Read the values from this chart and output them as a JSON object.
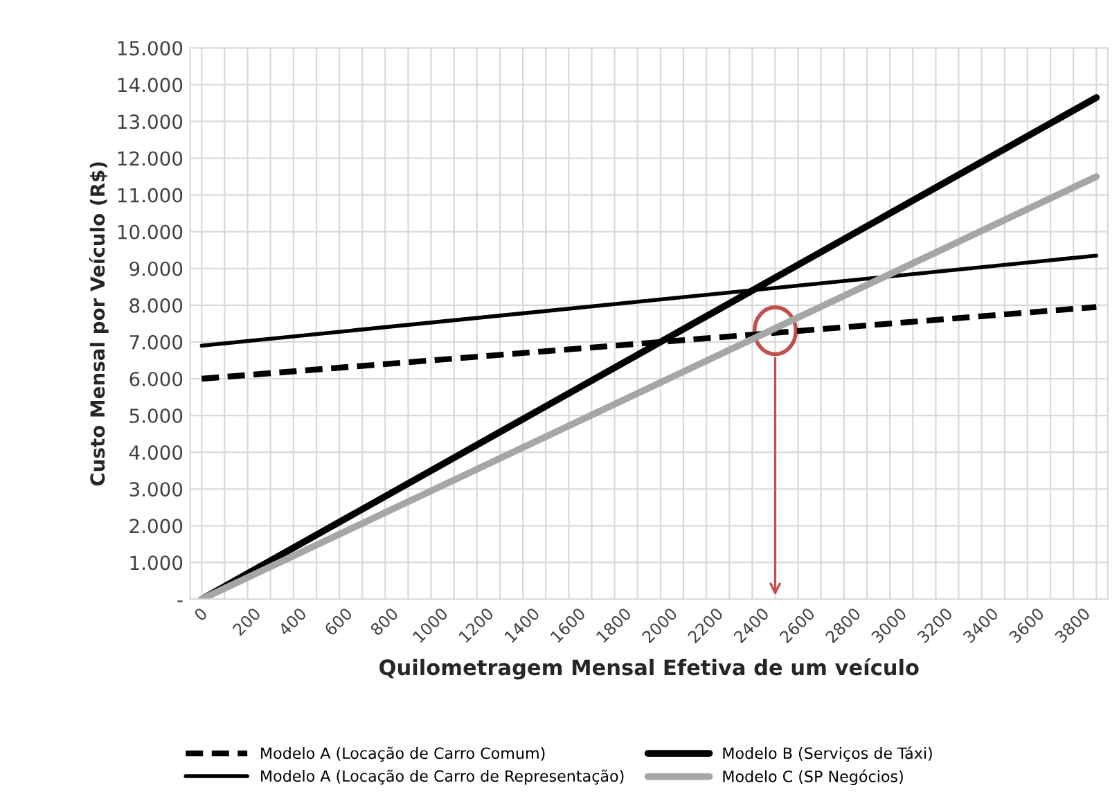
{
  "chart_data": {
    "type": "line",
    "xlabel": "Quilometragem Mensal Efetiva de um veículo",
    "ylabel": "Custo Mensal por Veículo (R$)",
    "x": [
      0,
      3900
    ],
    "series": [
      {
        "name": "Modelo A (Locação de Carro Comum)",
        "color": "#000000",
        "values": [
          6000,
          7950
        ],
        "line_style": "dashed"
      },
      {
        "name": "Modelo B (Serviços de Táxi)",
        "color": "#000000",
        "values": [
          0,
          13650
        ],
        "line_style": "solid"
      },
      {
        "name": "Modelo A (Locação de Carro de Representação)",
        "color": "#000000",
        "values": [
          6900,
          9350
        ],
        "line_style": "solid"
      },
      {
        "name": "Modelo C (SP Negócios)",
        "color": "#a6a6a6",
        "values": [
          0,
          11500
        ],
        "line_style": "solid"
      }
    ],
    "xlim": [
      -50,
      3950
    ],
    "xticks": [
      0,
      {
        "value": 100,
        "label": null
      },
      200,
      {
        "value": 300,
        "label": null
      },
      400,
      {
        "value": 500,
        "label": null
      },
      600,
      {
        "value": 700,
        "label": null
      },
      800,
      {
        "value": 900,
        "label": null
      },
      1000,
      {
        "value": 1100,
        "label": null
      },
      1200,
      {
        "value": 1300,
        "label": null
      },
      1400,
      {
        "value": 1500,
        "label": null
      },
      1600,
      {
        "value": 1700,
        "label": null
      },
      1800,
      {
        "value": 1900,
        "label": null
      },
      2000,
      {
        "value": 2100,
        "label": null
      },
      2200,
      {
        "value": 2300,
        "label": null
      },
      2400,
      {
        "value": 2500,
        "label": null
      },
      2600,
      {
        "value": 2700,
        "label": null
      },
      2800,
      {
        "value": 2900,
        "label": null
      },
      3000,
      {
        "value": 3100,
        "label": null
      },
      3200,
      {
        "value": 3300,
        "label": null
      },
      3400,
      {
        "value": 3500,
        "label": null
      },
      3600,
      {
        "value": 3700,
        "label": null
      },
      3800,
      {
        "value": 3900,
        "label": null
      }
    ],
    "ylim": [
      0,
      15000
    ],
    "yticks": [
      {
        "value": 0,
        "label": "-"
      },
      {
        "value": 1000,
        "label": "1.000"
      },
      {
        "value": 2000,
        "label": "2.000"
      },
      {
        "value": 3000,
        "label": "3.000"
      },
      {
        "value": 4000,
        "label": "4.000"
      },
      {
        "value": 5000,
        "label": "5.000"
      },
      {
        "value": 6000,
        "label": "6.000"
      },
      {
        "value": 7000,
        "label": "7.000"
      },
      {
        "value": 8000,
        "label": "8.000"
      },
      {
        "value": 9000,
        "label": "9.000"
      },
      {
        "value": 10000,
        "label": "10.000"
      },
      {
        "value": 11000,
        "label": "11.000"
      },
      {
        "value": 12000,
        "label": "12.000"
      },
      {
        "value": 13000,
        "label": "13.000"
      },
      {
        "value": 14000,
        "label": "14.000"
      },
      {
        "value": 15000,
        "label": "15.000"
      }
    ],
    "grid": true,
    "legend": "bottom"
  }
}
